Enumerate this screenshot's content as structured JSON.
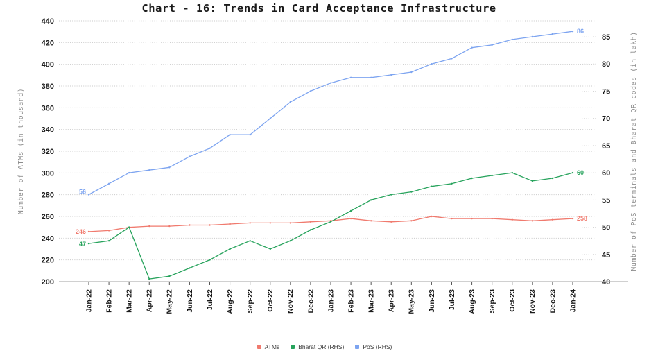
{
  "chart_data": {
    "type": "line",
    "title": "Chart - 16: Trends in Card Acceptance Infrastructure",
    "categories": [
      "Jan-22",
      "Feb-22",
      "Mar-22",
      "Apr-22",
      "May-22",
      "Jun-22",
      "Jul-22",
      "Aug-22",
      "Sep-22",
      "Oct-22",
      "Nov-22",
      "Dec-22",
      "Jan-23",
      "Feb-23",
      "Mar-23",
      "Apr-23",
      "May-23",
      "Jun-23",
      "Jul-23",
      "Aug-23",
      "Sep-23",
      "Oct-23",
      "Nov-23",
      "Dec-23",
      "Jan-24"
    ],
    "series": [
      {
        "name": "ATMs",
        "axis": "left",
        "color": "#f07a6e",
        "start_label": "246",
        "end_label": "258",
        "values": [
          246,
          247,
          250,
          251,
          251,
          252,
          252,
          253,
          254,
          254,
          254,
          255,
          256,
          258,
          256,
          255,
          256,
          260,
          258,
          258,
          258,
          257,
          256,
          257,
          258
        ]
      },
      {
        "name": "Bharat QR (RHS)",
        "axis": "right",
        "color": "#27a35c",
        "start_label": "47",
        "end_label": "60",
        "values": [
          47,
          47.5,
          50,
          40.5,
          41,
          42.5,
          44,
          46,
          47.5,
          46,
          47.5,
          49.5,
          51,
          53,
          55,
          56,
          56.5,
          57.5,
          58,
          59,
          59.5,
          60,
          58.5,
          59,
          60
        ]
      },
      {
        "name": "PoS (RHS)",
        "axis": "right",
        "color": "#7da4f0",
        "start_label": "56",
        "end_label": "86",
        "values": [
          56,
          58,
          60,
          60.5,
          61,
          63,
          64.5,
          67,
          67,
          70,
          73,
          75,
          76.5,
          77.5,
          77.5,
          78,
          78.5,
          80,
          81,
          83,
          83.5,
          84.5,
          85,
          85.5,
          86
        ]
      }
    ],
    "left_axis": {
      "label": "Number of ATMs (in thousand)",
      "min": 200,
      "max": 440,
      "tick_step": 20,
      "ticks": [
        440,
        420,
        400,
        380,
        360,
        340,
        320,
        300,
        280,
        260,
        240,
        220,
        200
      ]
    },
    "right_axis": {
      "label": "Number of PoS terminals and Bharat QR codes (in lakh)",
      "min": 40,
      "max": 85,
      "tick_step": 5,
      "ticks": [
        85,
        80,
        75,
        70,
        65,
        60,
        55,
        50,
        45,
        40
      ]
    },
    "grid": true,
    "legend_position": "bottom"
  },
  "colors": {
    "grid": "#c9c9c9",
    "axis_line": "#b3b3b3",
    "tick_mark": "#555555",
    "tick_label": "#1a1a1a",
    "axis_title": "#8c8c8c",
    "title": "#1b1b1b",
    "legend_text": "#3c3c3c",
    "background": "#ffffff"
  }
}
